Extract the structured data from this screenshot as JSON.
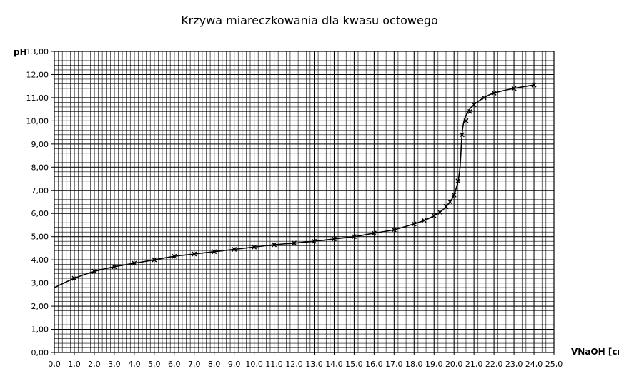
{
  "chart_data": {
    "type": "scatter",
    "title": "Krzywa miareczkowania dla kwasu octowego",
    "ylabel": "pH",
    "xlabel": "VNaOH [cm",
    "xlim": [
      0,
      25
    ],
    "ylim": [
      0,
      13
    ],
    "grid": true,
    "y_ticks": [
      "0,00",
      "1,00",
      "2,00",
      "3,00",
      "4,00",
      "5,00",
      "6,00",
      "7,00",
      "8,00",
      "9,00",
      "10,00",
      "11,00",
      "12,00",
      "13,00"
    ],
    "x_ticks": [
      "0,0",
      "1,0",
      "2,0",
      "3,0",
      "4,0",
      "5,0",
      "6,0",
      "7,0",
      "8,0",
      "9,0",
      "10,0",
      "11,0",
      "12,0",
      "13,0",
      "14,0",
      "15,0",
      "16,0",
      "17,0",
      "18,0",
      "19,0",
      "20,0",
      "21,0",
      "22,0",
      "23,0",
      "24,0",
      "25,0"
    ],
    "series": [
      {
        "x": [
          1,
          2,
          3,
          4,
          5,
          6,
          7,
          8,
          9,
          10,
          11,
          12,
          13,
          14,
          15,
          16,
          17,
          18,
          18.5,
          19,
          19.3,
          19.6,
          19.8,
          20,
          20.2,
          20.4,
          20.6,
          20.8,
          21,
          21.5,
          22,
          23,
          24
        ],
        "y": [
          3.2,
          3.5,
          3.7,
          3.85,
          4.0,
          4.15,
          4.25,
          4.35,
          4.45,
          4.55,
          4.65,
          4.72,
          4.8,
          4.9,
          5.0,
          5.15,
          5.3,
          5.55,
          5.7,
          5.9,
          6.05,
          6.3,
          6.5,
          6.8,
          7.4,
          9.4,
          10.0,
          10.4,
          10.7,
          11.0,
          11.2,
          11.4,
          11.55
        ]
      }
    ],
    "curve": {
      "x": [
        0,
        1,
        2,
        3,
        4,
        5,
        6,
        7,
        8,
        9,
        10,
        11,
        12,
        13,
        14,
        15,
        16,
        17,
        18,
        18.5,
        19,
        19.5,
        19.8,
        20,
        20.2,
        20.3,
        20.4,
        20.5,
        20.7,
        21,
        21.5,
        22,
        23,
        24
      ],
      "y": [
        2.8,
        3.2,
        3.5,
        3.7,
        3.85,
        4.0,
        4.15,
        4.25,
        4.35,
        4.45,
        4.55,
        4.65,
        4.72,
        4.8,
        4.9,
        5.0,
        5.15,
        5.3,
        5.55,
        5.7,
        5.9,
        6.2,
        6.5,
        6.8,
        7.4,
        8.0,
        9.4,
        10.0,
        10.4,
        10.7,
        11.0,
        11.2,
        11.4,
        11.55
      ]
    }
  }
}
